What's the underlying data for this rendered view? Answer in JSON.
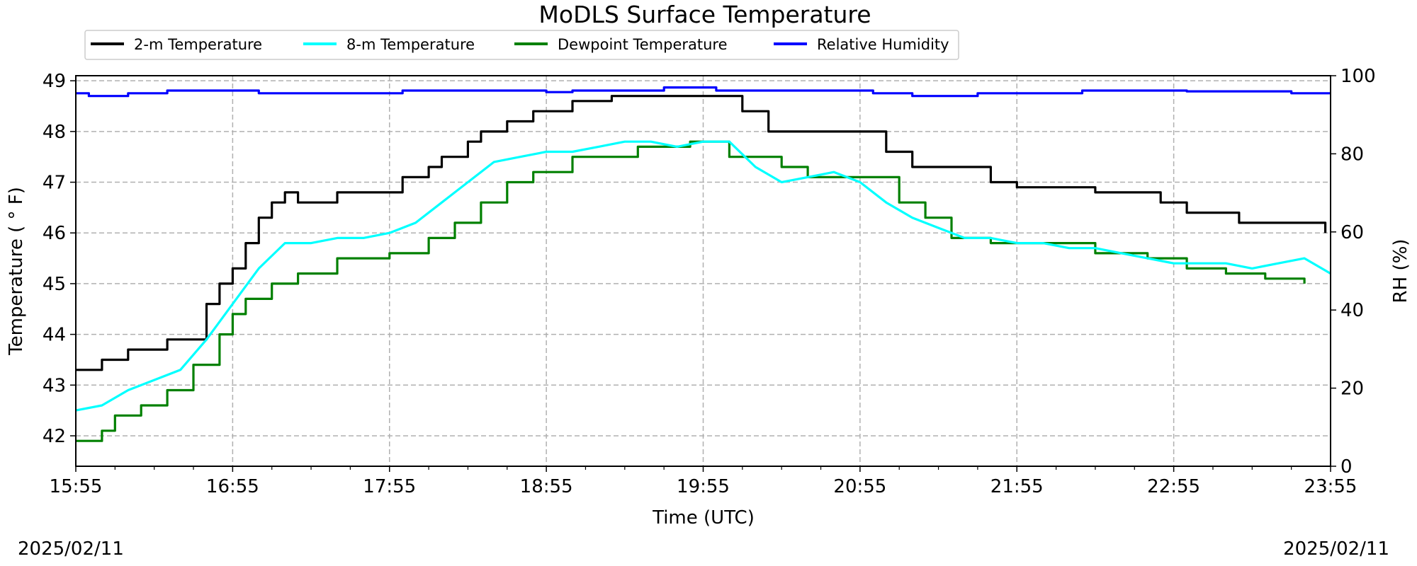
{
  "chart_data": {
    "type": "line",
    "title": "MoDLS Surface Temperature",
    "xlabel": "Time (UTC)",
    "ylabel": "Temperature ($^\\circ$F)",
    "ylabel_display": "Temperature ( ° F)",
    "y2label": "RH (%)",
    "x_ticks": [
      "15:55",
      "16:55",
      "17:55",
      "18:55",
      "19:55",
      "20:55",
      "21:55",
      "22:55",
      "23:55"
    ],
    "y_ticks": [
      "42",
      "43",
      "44",
      "45",
      "46",
      "47",
      "48",
      "49"
    ],
    "y2_ticks": [
      "0",
      "20",
      "40",
      "60",
      "80",
      "100"
    ],
    "xlim": [
      "15:55",
      "23:55"
    ],
    "ylim": [
      41.4,
      49.1
    ],
    "y2lim": [
      0,
      100
    ],
    "grid": true,
    "legend_position": "top-left",
    "date_left": "2025/02/11",
    "date_right": "2025/02/11",
    "series": [
      {
        "name": "2-m Temperature",
        "color": "#000000",
        "axis": "left",
        "step": true,
        "x": [
          "15:55",
          "16:05",
          "16:15",
          "16:30",
          "16:45",
          "16:50",
          "16:55",
          "17:00",
          "17:05",
          "17:10",
          "17:15",
          "17:20",
          "17:35",
          "18:00",
          "18:10",
          "18:15",
          "18:25",
          "18:30",
          "18:40",
          "18:50",
          "19:05",
          "19:20",
          "19:45",
          "20:10",
          "20:20",
          "20:35",
          "20:55",
          "21:05",
          "21:15",
          "21:45",
          "21:55",
          "22:25",
          "22:50",
          "23:00",
          "23:20",
          "23:45",
          "23:53"
        ],
        "y": [
          43.3,
          43.5,
          43.7,
          43.9,
          44.6,
          45.0,
          45.3,
          45.8,
          46.3,
          46.6,
          46.8,
          46.6,
          46.8,
          47.1,
          47.3,
          47.5,
          47.8,
          48.0,
          48.2,
          48.4,
          48.6,
          48.7,
          48.7,
          48.4,
          48.0,
          48.0,
          48.0,
          47.6,
          47.3,
          47.0,
          46.9,
          46.8,
          46.6,
          46.4,
          46.2,
          46.2,
          46.0
        ]
      },
      {
        "name": "8-m Temperature",
        "color": "#00ffff",
        "axis": "left",
        "step": false,
        "x": [
          "15:55",
          "16:05",
          "16:15",
          "16:25",
          "16:35",
          "16:45",
          "16:55",
          "17:05",
          "17:15",
          "17:25",
          "17:35",
          "17:45",
          "17:55",
          "18:05",
          "18:15",
          "18:25",
          "18:35",
          "18:45",
          "18:55",
          "19:05",
          "19:15",
          "19:25",
          "19:35",
          "19:45",
          "19:55",
          "20:05",
          "20:15",
          "20:25",
          "20:35",
          "20:45",
          "20:55",
          "21:05",
          "21:15",
          "21:25",
          "21:35",
          "21:45",
          "21:55",
          "22:05",
          "22:15",
          "22:25",
          "22:35",
          "22:45",
          "22:55",
          "23:05",
          "23:15",
          "23:25",
          "23:35",
          "23:45",
          "23:55"
        ],
        "y": [
          42.5,
          42.6,
          42.9,
          43.1,
          43.3,
          43.9,
          44.6,
          45.3,
          45.8,
          45.8,
          45.9,
          45.9,
          46.0,
          46.2,
          46.6,
          47.0,
          47.4,
          47.5,
          47.6,
          47.6,
          47.7,
          47.8,
          47.8,
          47.7,
          47.8,
          47.8,
          47.3,
          47.0,
          47.1,
          47.2,
          47.0,
          46.6,
          46.3,
          46.1,
          45.9,
          45.9,
          45.8,
          45.8,
          45.7,
          45.7,
          45.6,
          45.5,
          45.4,
          45.4,
          45.4,
          45.3,
          45.4,
          45.5,
          45.2
        ]
      },
      {
        "name": "Dewpoint Temperature",
        "color": "#008000",
        "axis": "left",
        "step": true,
        "x": [
          "15:55",
          "16:05",
          "16:10",
          "16:20",
          "16:30",
          "16:40",
          "16:50",
          "16:55",
          "17:00",
          "17:10",
          "17:20",
          "17:35",
          "17:55",
          "18:10",
          "18:20",
          "18:30",
          "18:40",
          "18:50",
          "19:05",
          "19:15",
          "19:30",
          "19:50",
          "20:05",
          "20:15",
          "20:25",
          "20:35",
          "20:55",
          "21:00",
          "21:10",
          "21:20",
          "21:30",
          "21:45",
          "21:55",
          "22:25",
          "22:45",
          "23:00",
          "23:15",
          "23:30",
          "23:45"
        ],
        "y": [
          41.9,
          42.1,
          42.4,
          42.6,
          42.9,
          43.4,
          44.0,
          44.4,
          44.7,
          45.0,
          45.2,
          45.5,
          45.6,
          45.9,
          46.2,
          46.6,
          47.0,
          47.2,
          47.5,
          47.5,
          47.7,
          47.8,
          47.5,
          47.5,
          47.3,
          47.1,
          47.1,
          47.1,
          46.6,
          46.3,
          45.9,
          45.8,
          45.8,
          45.6,
          45.5,
          45.3,
          45.2,
          45.1,
          45.0
        ]
      },
      {
        "name": "Relative Humidity",
        "color": "#0000ff",
        "axis": "right",
        "step": true,
        "x": [
          "15:55",
          "16:00",
          "16:15",
          "16:30",
          "17:05",
          "17:40",
          "18:00",
          "18:30",
          "18:55",
          "19:05",
          "19:30",
          "19:40",
          "20:00",
          "21:00",
          "21:15",
          "21:40",
          "22:20",
          "23:00",
          "23:40",
          "23:55"
        ],
        "y": [
          95.5,
          94.8,
          95.5,
          96.2,
          95.5,
          95.5,
          96.2,
          96.2,
          95.8,
          96.2,
          96.2,
          97.0,
          96.2,
          95.5,
          94.8,
          95.5,
          96.2,
          96.0,
          95.5,
          95.5
        ]
      }
    ]
  }
}
